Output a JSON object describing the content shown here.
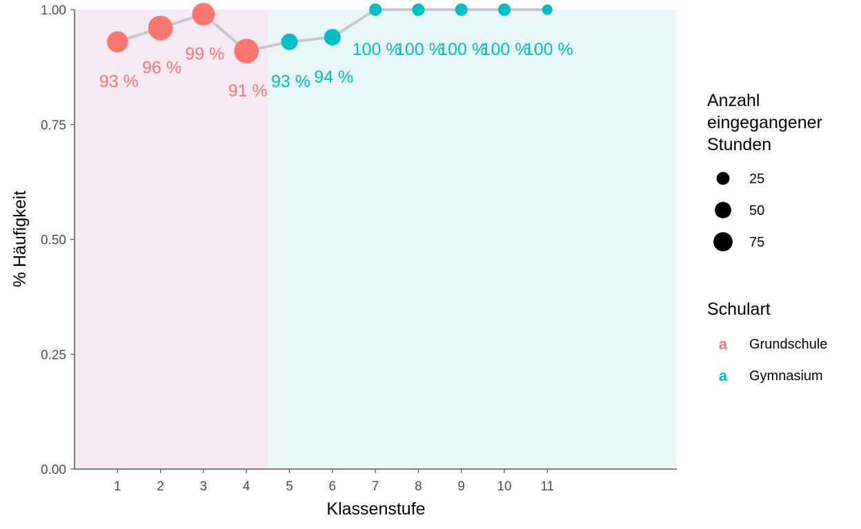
{
  "chart_data": {
    "type": "line",
    "xlabel": "Klassenstufe",
    "ylabel": "% Häufigkeit",
    "x": [
      1,
      2,
      3,
      4,
      5,
      6,
      7,
      8,
      9,
      10,
      11
    ],
    "xlim": [
      0,
      14
    ],
    "ylim": [
      0,
      1
    ],
    "y_ticks": [
      "0.00",
      "0.25",
      "0.50",
      "0.75",
      "1.00"
    ],
    "x_ticks": [
      "1",
      "2",
      "3",
      "4",
      "5",
      "6",
      "7",
      "8",
      "9",
      "10",
      "11"
    ],
    "grid": false,
    "line_color": "#c8c8c8",
    "background_regions": [
      {
        "from": 0,
        "to": 4.5,
        "color": "#f6eaf4"
      },
      {
        "from": 4.5,
        "to": 14,
        "color": "#e9f6f6"
      }
    ],
    "series": [
      {
        "name": "Grundschule",
        "color": "#f8766d",
        "points": [
          {
            "x": 1,
            "y": 0.93,
            "label": "93 %",
            "size": 50
          },
          {
            "x": 2,
            "y": 0.96,
            "label": "96 %",
            "size": 75
          },
          {
            "x": 3,
            "y": 0.99,
            "label": "99 %",
            "size": 60
          },
          {
            "x": 4,
            "y": 0.91,
            "label": "91 %",
            "size": 75
          }
        ]
      },
      {
        "name": "Gymnasium",
        "color": "#00bfc4",
        "points": [
          {
            "x": 5,
            "y": 0.93,
            "label": "93 %",
            "size": 25
          },
          {
            "x": 6,
            "y": 0.94,
            "label": "94 %",
            "size": 25
          },
          {
            "x": 7,
            "y": 1.0,
            "label": "100 %",
            "size": 10
          },
          {
            "x": 8,
            "y": 1.0,
            "label": "100 %",
            "size": 10
          },
          {
            "x": 9,
            "y": 1.0,
            "label": "100 %",
            "size": 10
          },
          {
            "x": 10,
            "y": 1.0,
            "label": "100 %",
            "size": 10
          },
          {
            "x": 11,
            "y": 1.0,
            "label": "100 %",
            "size": 5
          }
        ]
      }
    ],
    "legend": {
      "placement": "right",
      "size_title": "Anzahl eingegangener Stunden",
      "size_title_lines": [
        "Anzahl",
        "eingegangener",
        "Stunden"
      ],
      "size_entries": [
        {
          "label": "25",
          "value": 25
        },
        {
          "label": "50",
          "value": 50
        },
        {
          "label": "75",
          "value": 75
        }
      ],
      "color_title": "Schulart",
      "color_entries": [
        {
          "label": "Grundschule",
          "color": "#f8766d",
          "glyph": "a"
        },
        {
          "label": "Gymnasium",
          "color": "#00bfc4",
          "glyph": "a"
        }
      ]
    }
  }
}
